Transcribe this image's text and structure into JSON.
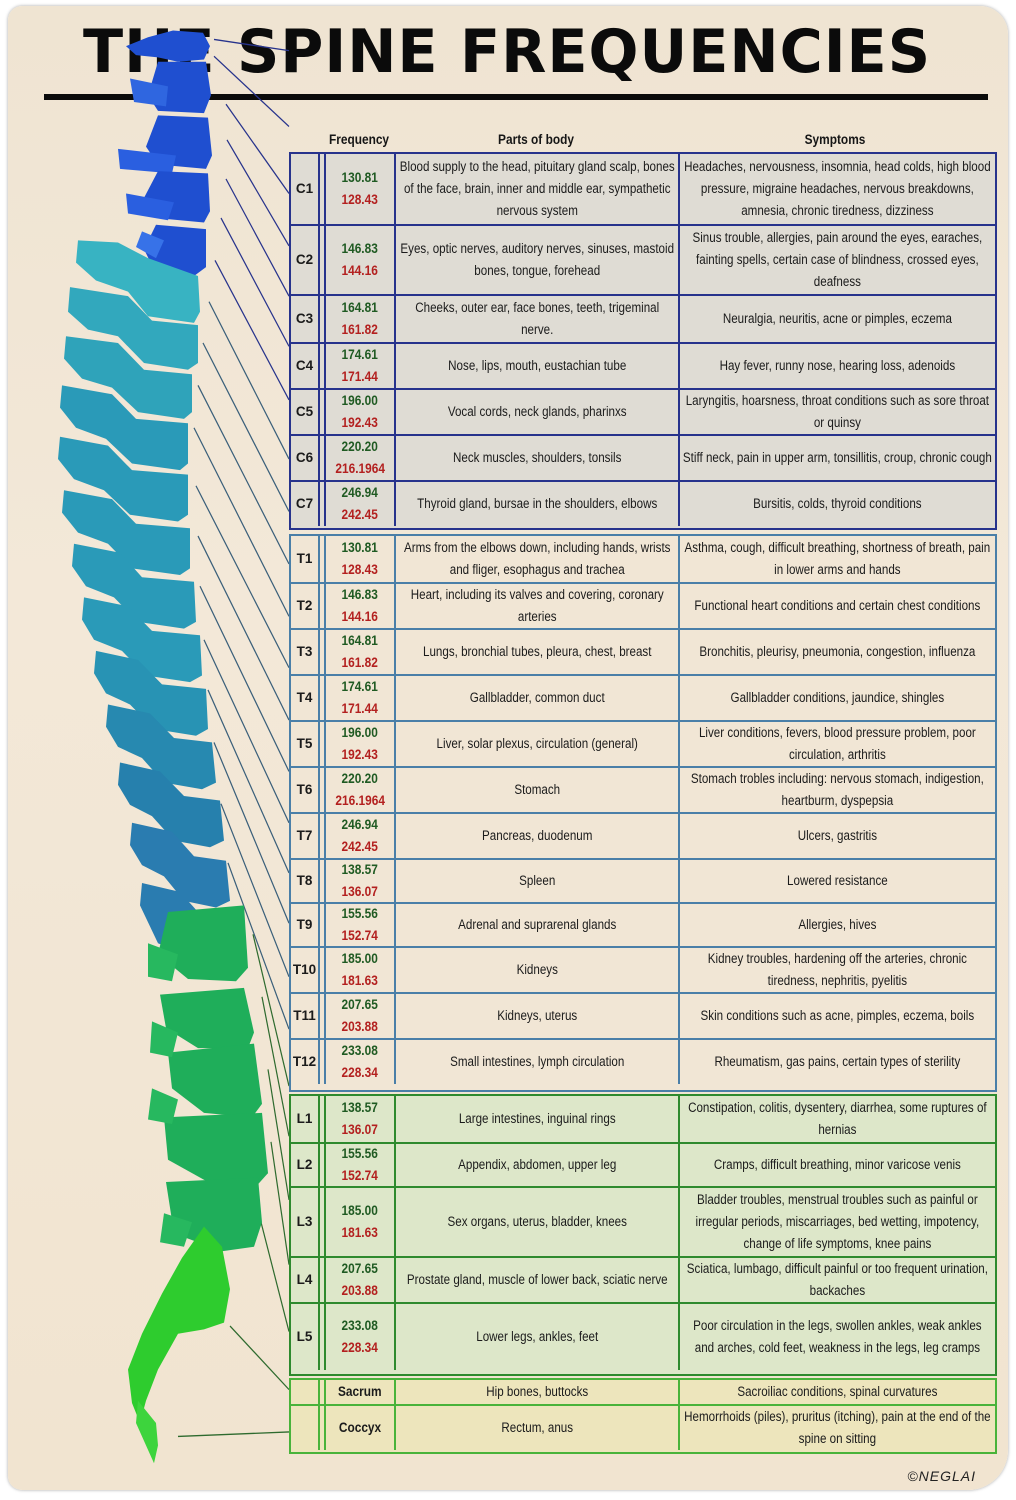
{
  "title": "THE SPINE FREQUENCIES",
  "headers": {
    "frequency": "Frequency",
    "parts": "Parts of body",
    "symptoms": "Symptoms"
  },
  "colors": {
    "cervical_border": "#27338c",
    "thoracic_border": "#4a7fa8",
    "lumbar_border": "#2e8a2e",
    "sacral_border": "#49b33a",
    "freq_primary": "#1f5a22",
    "freq_secondary": "#b3201f",
    "spine_cervical": "#1f4fd0",
    "spine_thoracic": "#2a9ab8",
    "spine_lumbar": "#1fae5a",
    "spine_sacrum": "#2ecc2e"
  },
  "cervical": [
    {
      "label": "C1",
      "f1": "130.81",
      "f2": "128.43",
      "parts": "Blood supply to the head, pituitary gland scalp, bones of the face, brain, inner and middle ear, sympathetic nervous system",
      "symptoms": "Headaches, nervousness, insomnia, head colds, high blood pressure, migraine headaches, nervous breakdowns, amnesia, chronic tiredness, dizziness"
    },
    {
      "label": "C2",
      "f1": "146.83",
      "f2": "144.16",
      "parts": "Eyes, optic nerves, auditory nerves, sinuses, mastoid bones, tongue, forehead",
      "symptoms": "Sinus trouble, allergies, pain around the eyes, earaches, fainting spells, certain case of blindness, crossed eyes, deafness"
    },
    {
      "label": "C3",
      "f1": "164.81",
      "f2": "161.82",
      "parts": "Cheeks, outer ear, face bones, teeth, trigeminal nerve.",
      "symptoms": "Neuralgia, neuritis, acne or pimples, eczema"
    },
    {
      "label": "C4",
      "f1": "174.61",
      "f2": "171.44",
      "parts": "Nose, lips, mouth, eustachian tube",
      "symptoms": "Hay fever, runny nose, hearing loss, adenoids"
    },
    {
      "label": "C5",
      "f1": "196.00",
      "f2": "192.43",
      "parts": "Vocal cords, neck glands, pharinxs",
      "symptoms": "Laryngitis, hoarsness, throat conditions such as sore throat or quinsy"
    },
    {
      "label": "C6",
      "f1": "220.20",
      "f2": "216.1964",
      "parts": "Neck muscles, shoulders, tonsils",
      "symptoms": "Stiff neck, pain in upper arm, tonsillitis, croup, chronic cough"
    },
    {
      "label": "C7",
      "f1": "246.94",
      "f2": "242.45",
      "parts": "Thyroid gland, bursae in the shoulders, elbows",
      "symptoms": "Bursitis, colds, thyroid conditions"
    }
  ],
  "thoracic": [
    {
      "label": "T1",
      "f1": "130.81",
      "f2": "128.43",
      "parts": "Arms from the elbows down, including hands, wrists and fliger, esophagus and trachea",
      "symptoms": "Asthma, cough, difficult breathing, shortness of breath, pain in lower arms and hands"
    },
    {
      "label": "T2",
      "f1": "146.83",
      "f2": "144.16",
      "parts": "Heart, including its valves and covering, coronary arteries",
      "symptoms": "Functional heart conditions and certain chest conditions"
    },
    {
      "label": "T3",
      "f1": "164.81",
      "f2": "161.82",
      "parts": "Lungs, bronchial tubes, pleura, chest, breast",
      "symptoms": "Bronchitis, pleurisy, pneumonia, congestion, influenza"
    },
    {
      "label": "T4",
      "f1": "174.61",
      "f2": "171.44",
      "parts": "Gallbladder, common duct",
      "symptoms": "Gallbladder conditions, jaundice, shingles"
    },
    {
      "label": "T5",
      "f1": "196.00",
      "f2": "192.43",
      "parts": "Liver, solar plexus, circulation (general)",
      "symptoms": "Liver conditions, fevers, blood pressure problem, poor circulation, arthritis"
    },
    {
      "label": "T6",
      "f1": "220.20",
      "f2": "216.1964",
      "parts": "Stomach",
      "symptoms": "Stomach trobles including: nervous stomach, indigestion, heartburm, dyspepsia"
    },
    {
      "label": "T7",
      "f1": "246.94",
      "f2": "242.45",
      "parts": "Pancreas, duodenum",
      "symptoms": "Ulcers, gastritis"
    },
    {
      "label": "T8",
      "f1": "138.57",
      "f2": "136.07",
      "parts": "Spleen",
      "symptoms": "Lowered resistance"
    },
    {
      "label": "T9",
      "f1": "155.56",
      "f2": "152.74",
      "parts": "Adrenal and suprarenal glands",
      "symptoms": "Allergies, hives"
    },
    {
      "label": "T10",
      "f1": "185.00",
      "f2": "181.63",
      "parts": "Kidneys",
      "symptoms": "Kidney troubles, hardening off the arteries, chronic tiredness, nephritis, pyelitis"
    },
    {
      "label": "T11",
      "f1": "207.65",
      "f2": "203.88",
      "parts": "Kidneys, uterus",
      "symptoms": "Skin conditions such as acne, pimples, eczema, boils"
    },
    {
      "label": "T12",
      "f1": "233.08",
      "f2": "228.34",
      "parts": "Small intestines, lymph circulation",
      "symptoms": "Rheumatism, gas pains, certain types of sterility"
    }
  ],
  "lumbar": [
    {
      "label": "L1",
      "f1": "138.57",
      "f2": "136.07",
      "parts": "Large intestines, inguinal rings",
      "symptoms": "Constipation, colitis, dysentery, diarrhea, some ruptures of hernias"
    },
    {
      "label": "L2",
      "f1": "155.56",
      "f2": "152.74",
      "parts": "Appendix, abdomen, upper leg",
      "symptoms": "Cramps, difficult breathing, minor varicose venis"
    },
    {
      "label": "L3",
      "f1": "185.00",
      "f2": "181.63",
      "parts": "Sex organs, uterus, bladder, knees",
      "symptoms": "Bladder troubles, menstrual troubles such as painful or irregular periods, miscarriages, bed wetting, impotency, change of life symptoms, knee pains"
    },
    {
      "label": "L4",
      "f1": "207.65",
      "f2": "203.88",
      "parts": "Prostate gland, muscle of lower back, sciatic nerve",
      "symptoms": "Sciatica, lumbago, difficult painful or too frequent urination, backaches"
    },
    {
      "label": "L5",
      "f1": "233.08",
      "f2": "228.34",
      "parts": "Lower legs, ankles, feet",
      "symptoms": "Poor circulation in the legs, swollen ankles, weak ankles and arches, cold feet, weakness in the legs, leg cramps"
    }
  ],
  "sacral": [
    {
      "label": "",
      "name": "Sacrum",
      "parts": "Hip bones, buttocks",
      "symptoms": "Sacroiliac conditions, spinal curvatures"
    },
    {
      "label": "",
      "name": "Coccyx",
      "parts": "Rectum, anus",
      "symptoms": "Hemorrhoids (piles), pruritus (itching), pain at the end of the spine on sitting"
    }
  ],
  "copyright": "©NEGLAI"
}
